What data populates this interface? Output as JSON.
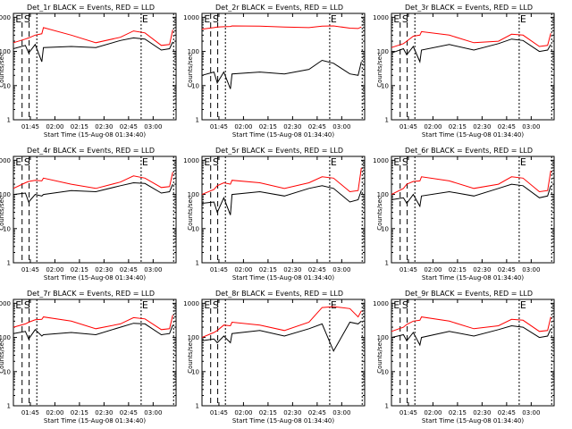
{
  "figure": {
    "xlabel": "Start Time (15-Aug-08 01:34:40)",
    "ylabel": "Counts/sec",
    "xticks": [
      "01:45",
      "02:00",
      "02:15",
      "02:30",
      "02:45",
      "03:00"
    ],
    "yticks": [
      "1",
      "10",
      "100",
      "1000"
    ],
    "colors": {
      "events": "#000000",
      "lld": "#ff0000"
    }
  },
  "chart_data": [
    {
      "type": "line",
      "title": "Det_1r BLACK = Events, RED = LLD",
      "xlabel": "Start Time (15-Aug-08 01:34:40)",
      "ylabel": "Counts/sec",
      "markers": [
        "E",
        "S",
        "E"
      ],
      "ylim": [
        1,
        1000
      ],
      "yscale": "log",
      "series": [
        {
          "name": "Events",
          "color": "#000000",
          "x": [
            "01:34:40",
            "01:42",
            "01:44",
            "01:48",
            "01:52",
            "01:53",
            "02:10",
            "02:25",
            "02:40",
            "02:48",
            "02:55",
            "03:05",
            "03:10",
            "03:12"
          ],
          "values": [
            120,
            150,
            90,
            160,
            50,
            130,
            140,
            130,
            210,
            250,
            230,
            110,
            120,
            190
          ]
        },
        {
          "name": "LLD",
          "color": "#ff0000",
          "x": [
            "01:34:40",
            "01:42",
            "01:44",
            "01:48",
            "01:52",
            "01:53",
            "02:10",
            "02:25",
            "02:40",
            "02:48",
            "02:55",
            "03:05",
            "03:10",
            "03:12"
          ],
          "values": [
            180,
            230,
            250,
            300,
            330,
            500,
            300,
            180,
            260,
            400,
            350,
            150,
            160,
            430
          ]
        }
      ]
    },
    {
      "type": "line",
      "title": "Det_2r BLACK = Events, RED = LLD",
      "xlabel": "Start Time (15-Aug-08 01:34:40)",
      "ylabel": "Counts/sec",
      "markers": [
        "E",
        "S",
        "E"
      ],
      "ylim": [
        1,
        1000
      ],
      "yscale": "log",
      "series": [
        {
          "name": "Events",
          "color": "#000000",
          "x": [
            "01:34:40",
            "01:42",
            "01:44",
            "01:48",
            "01:52",
            "01:53",
            "02:10",
            "02:25",
            "02:40",
            "02:48",
            "02:55",
            "03:05",
            "03:10",
            "03:12"
          ],
          "values": [
            20,
            25,
            12,
            25,
            8,
            22,
            25,
            22,
            30,
            55,
            45,
            22,
            20,
            50
          ]
        },
        {
          "name": "LLD",
          "color": "#ff0000",
          "x": [
            "01:34:40",
            "01:42",
            "01:44",
            "01:48",
            "01:52",
            "01:53",
            "02:10",
            "02:25",
            "02:40",
            "02:48",
            "02:55",
            "03:05",
            "03:10",
            "03:12"
          ],
          "values": [
            450,
            500,
            520,
            530,
            540,
            560,
            550,
            520,
            500,
            550,
            560,
            480,
            470,
            520
          ]
        }
      ]
    },
    {
      "type": "line",
      "title": "Det_3r BLACK = Events, RED = LLD",
      "xlabel": "Start Time (15-Aug-08 01:34:40)",
      "ylabel": "Counts/sec",
      "markers": [
        "E",
        "S",
        "E"
      ],
      "ylim": [
        1,
        1000
      ],
      "yscale": "log",
      "series": [
        {
          "name": "Events",
          "color": "#000000",
          "x": [
            "01:34:40",
            "01:42",
            "01:44",
            "01:48",
            "01:52",
            "01:53",
            "02:10",
            "02:25",
            "02:40",
            "02:48",
            "02:55",
            "03:05",
            "03:10",
            "03:12"
          ],
          "values": [
            90,
            120,
            80,
            140,
            50,
            110,
            160,
            110,
            170,
            230,
            210,
            100,
            110,
            160
          ]
        },
        {
          "name": "LLD",
          "color": "#ff0000",
          "x": [
            "01:34:40",
            "01:42",
            "01:44",
            "01:48",
            "01:52",
            "01:53",
            "02:10",
            "02:25",
            "02:40",
            "02:48",
            "02:55",
            "03:05",
            "03:10",
            "03:12"
          ],
          "values": [
            130,
            170,
            200,
            280,
            300,
            380,
            300,
            180,
            200,
            320,
            300,
            140,
            150,
            340
          ]
        }
      ]
    },
    {
      "type": "line",
      "title": "Det_4r BLACK = Events, RED = LLD",
      "xlabel": "Start Time (15-Aug-08 01:34:40)",
      "ylabel": "Counts/sec",
      "markers": [
        "E",
        "S",
        "E"
      ],
      "ylim": [
        1,
        1000
      ],
      "yscale": "log",
      "series": [
        {
          "name": "Events",
          "color": "#000000",
          "x": [
            "01:34:40",
            "01:42",
            "01:44",
            "01:48",
            "01:52",
            "01:53",
            "02:10",
            "02:25",
            "02:40",
            "02:48",
            "02:55",
            "03:05",
            "03:10",
            "03:12"
          ],
          "values": [
            100,
            110,
            60,
            100,
            90,
            100,
            130,
            120,
            180,
            220,
            210,
            110,
            120,
            200
          ]
        },
        {
          "name": "LLD",
          "color": "#ff0000",
          "x": [
            "01:34:40",
            "01:42",
            "01:44",
            "01:48",
            "01:52",
            "01:53",
            "02:10",
            "02:25",
            "02:40",
            "02:48",
            "02:55",
            "03:05",
            "03:10",
            "03:12"
          ],
          "values": [
            150,
            220,
            240,
            260,
            250,
            300,
            200,
            150,
            230,
            350,
            300,
            160,
            170,
            450
          ]
        }
      ]
    },
    {
      "type": "line",
      "title": "Det_5r BLACK = Events, RED = LLD",
      "xlabel": "Start Time (15-Aug-08 01:34:40)",
      "ylabel": "Counts/sec",
      "markers": [
        "E",
        "S",
        "E"
      ],
      "ylim": [
        1,
        1000
      ],
      "yscale": "log",
      "series": [
        {
          "name": "Events",
          "color": "#000000",
          "x": [
            "01:34:40",
            "01:42",
            "01:44",
            "01:48",
            "01:52",
            "01:53",
            "02:10",
            "02:25",
            "02:40",
            "02:48",
            "02:55",
            "03:05",
            "03:10",
            "03:12"
          ],
          "values": [
            55,
            60,
            30,
            80,
            25,
            100,
            120,
            90,
            150,
            180,
            150,
            60,
            70,
            130
          ]
        },
        {
          "name": "LLD",
          "color": "#ff0000",
          "x": [
            "01:34:40",
            "01:42",
            "01:44",
            "01:48",
            "01:52",
            "01:53",
            "02:10",
            "02:25",
            "02:40",
            "02:48",
            "02:55",
            "03:05",
            "03:10",
            "03:12"
          ],
          "values": [
            100,
            140,
            180,
            220,
            200,
            260,
            220,
            150,
            220,
            330,
            300,
            120,
            130,
            600
          ]
        }
      ]
    },
    {
      "type": "line",
      "title": "Det_6r BLACK = Events, RED = LLD",
      "xlabel": "Start Time (15-Aug-08 01:34:40)",
      "ylabel": "Counts/sec",
      "markers": [
        "E",
        "S",
        "E"
      ],
      "ylim": [
        1,
        1000
      ],
      "yscale": "log",
      "series": [
        {
          "name": "Events",
          "color": "#000000",
          "x": [
            "01:34:40",
            "01:42",
            "01:44",
            "01:48",
            "01:52",
            "01:53",
            "02:10",
            "02:25",
            "02:40",
            "02:48",
            "02:55",
            "03:05",
            "03:10",
            "03:12"
          ],
          "values": [
            70,
            80,
            55,
            100,
            45,
            90,
            120,
            90,
            150,
            200,
            180,
            80,
            90,
            180
          ]
        },
        {
          "name": "LLD",
          "color": "#ff0000",
          "x": [
            "01:34:40",
            "01:42",
            "01:44",
            "01:48",
            "01:52",
            "01:53",
            "02:10",
            "02:25",
            "02:40",
            "02:48",
            "02:55",
            "03:05",
            "03:10",
            "03:12"
          ],
          "values": [
            100,
            150,
            200,
            240,
            250,
            330,
            250,
            150,
            200,
            330,
            300,
            120,
            130,
            500
          ]
        }
      ]
    },
    {
      "type": "line",
      "title": "Det_7r BLACK = Events, RED = LLD",
      "xlabel": "Start Time (15-Aug-08 01:34:40)",
      "ylabel": "Counts/sec",
      "markers": [
        "E",
        "S",
        "E"
      ],
      "ylim": [
        1,
        1000
      ],
      "yscale": "log",
      "series": [
        {
          "name": "Events",
          "color": "#000000",
          "x": [
            "01:34:40",
            "01:42",
            "01:44",
            "01:48",
            "01:52",
            "01:53",
            "02:10",
            "02:25",
            "02:40",
            "02:48",
            "02:55",
            "03:05",
            "03:10",
            "03:12"
          ],
          "values": [
            130,
            150,
            90,
            170,
            110,
            120,
            140,
            120,
            200,
            260,
            250,
            120,
            130,
            230
          ]
        },
        {
          "name": "LLD",
          "color": "#ff0000",
          "x": [
            "01:34:40",
            "01:42",
            "01:44",
            "01:48",
            "01:52",
            "01:53",
            "02:10",
            "02:25",
            "02:40",
            "02:48",
            "02:55",
            "03:05",
            "03:10",
            "03:12"
          ],
          "values": [
            200,
            250,
            280,
            330,
            340,
            400,
            300,
            180,
            250,
            380,
            350,
            170,
            180,
            450
          ]
        }
      ]
    },
    {
      "type": "line",
      "title": "Det_8r BLACK = Events, RED = LLD",
      "xlabel": "Start Time (15-Aug-08 01:34:40)",
      "ylabel": "Counts/sec",
      "markers": [
        "E",
        "S",
        "E"
      ],
      "ylim": [
        1,
        1000
      ],
      "yscale": "log",
      "series": [
        {
          "name": "Events",
          "color": "#000000",
          "x": [
            "01:34:40",
            "01:42",
            "01:44",
            "01:48",
            "01:52",
            "01:53",
            "02:10",
            "02:25",
            "02:40",
            "02:48",
            "02:55",
            "03:05",
            "03:10",
            "03:12"
          ],
          "values": [
            80,
            90,
            70,
            110,
            70,
            130,
            160,
            110,
            180,
            250,
            40,
            280,
            250,
            300
          ]
        },
        {
          "name": "LLD",
          "color": "#ff0000",
          "x": [
            "01:34:40",
            "01:42",
            "01:44",
            "01:48",
            "01:52",
            "01:53",
            "02:10",
            "02:25",
            "02:40",
            "02:48",
            "02:55",
            "03:05",
            "03:10",
            "03:12"
          ],
          "values": [
            100,
            140,
            160,
            230,
            220,
            280,
            230,
            160,
            280,
            750,
            800,
            700,
            400,
            600
          ]
        }
      ]
    },
    {
      "type": "line",
      "title": "Det_9r BLACK = Events, RED = LLD",
      "xlabel": "Start Time (15-Aug-08 01:34:40)",
      "ylabel": "Counts/sec",
      "markers": [
        "E",
        "S",
        "E"
      ],
      "ylim": [
        1,
        1000
      ],
      "yscale": "log",
      "series": [
        {
          "name": "Events",
          "color": "#000000",
          "x": [
            "01:34:40",
            "01:42",
            "01:44",
            "01:48",
            "01:52",
            "01:53",
            "02:10",
            "02:25",
            "02:40",
            "02:48",
            "02:55",
            "03:05",
            "03:10",
            "03:12"
          ],
          "values": [
            100,
            120,
            80,
            140,
            60,
            100,
            150,
            110,
            170,
            220,
            200,
            100,
            110,
            180
          ]
        },
        {
          "name": "LLD",
          "color": "#ff0000",
          "x": [
            "01:34:40",
            "01:42",
            "01:44",
            "01:48",
            "01:52",
            "01:53",
            "02:10",
            "02:25",
            "02:40",
            "02:48",
            "02:55",
            "03:05",
            "03:10",
            "03:12"
          ],
          "values": [
            150,
            200,
            240,
            300,
            320,
            400,
            300,
            180,
            220,
            340,
            320,
            150,
            160,
            400
          ]
        }
      ]
    }
  ]
}
